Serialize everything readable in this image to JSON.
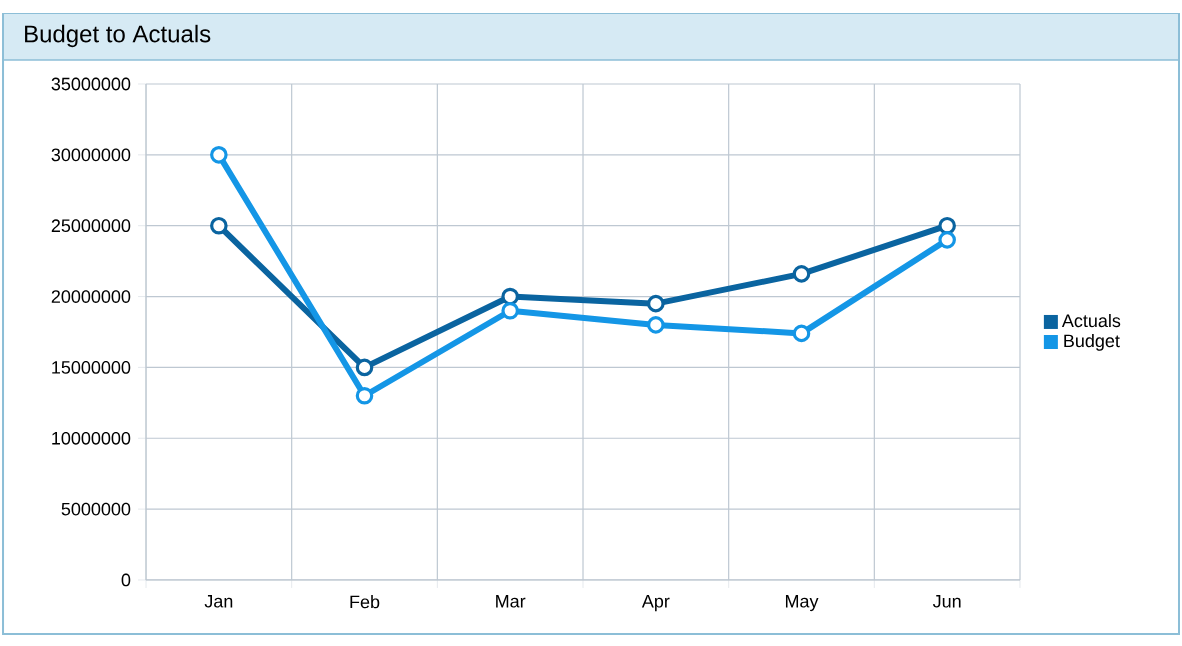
{
  "chart_data": {
    "type": "line",
    "title": "Budget to Actuals",
    "categories": [
      "Jan",
      "Feb",
      "Mar",
      "Apr",
      "May",
      "Jun"
    ],
    "series": [
      {
        "name": "Actuals",
        "color": "#0a64a0",
        "values": [
          25000000,
          15000000,
          20000000,
          19500000,
          21600000,
          25000000
        ]
      },
      {
        "name": "Budget",
        "color": "#1496e6",
        "values": [
          30000000,
          13000000,
          19000000,
          18000000,
          17400000,
          24000000
        ]
      }
    ],
    "ylim": [
      0,
      35000000
    ],
    "yticks": [
      0,
      5000000,
      10000000,
      15000000,
      20000000,
      25000000,
      30000000,
      35000000
    ],
    "grid": true,
    "legend": "right",
    "marker": "circle",
    "line_style": "solid"
  }
}
